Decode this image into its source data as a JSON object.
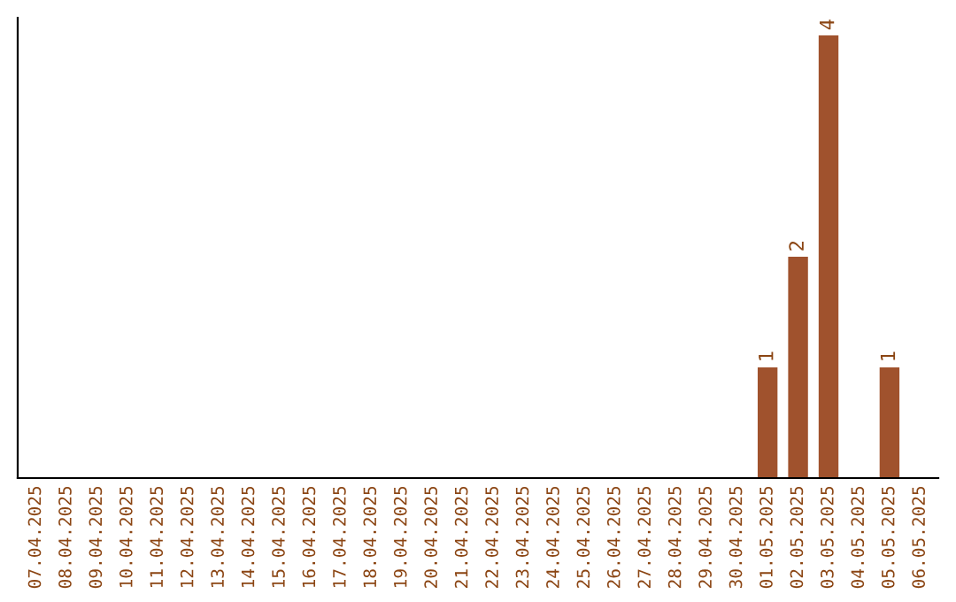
{
  "chart_data": {
    "type": "bar",
    "categories": [
      "07.04.2025",
      "08.04.2025",
      "09.04.2025",
      "10.04.2025",
      "11.04.2025",
      "12.04.2025",
      "13.04.2025",
      "14.04.2025",
      "15.04.2025",
      "16.04.2025",
      "17.04.2025",
      "18.04.2025",
      "19.04.2025",
      "20.04.2025",
      "21.04.2025",
      "22.04.2025",
      "23.04.2025",
      "24.04.2025",
      "25.04.2025",
      "26.04.2025",
      "27.04.2025",
      "28.04.2025",
      "29.04.2025",
      "30.04.2025",
      "01.05.2025",
      "02.05.2025",
      "03.05.2025",
      "04.05.2025",
      "05.05.2025",
      "06.05.2025"
    ],
    "values": [
      null,
      null,
      null,
      null,
      null,
      null,
      null,
      null,
      null,
      null,
      null,
      null,
      null,
      null,
      null,
      null,
      null,
      null,
      null,
      null,
      null,
      null,
      null,
      null,
      1,
      2,
      4,
      null,
      1,
      null
    ],
    "value_labels": [
      null,
      null,
      null,
      null,
      null,
      null,
      null,
      null,
      null,
      null,
      null,
      null,
      null,
      null,
      null,
      null,
      null,
      null,
      null,
      null,
      null,
      null,
      null,
      null,
      "1",
      "2",
      "4",
      null,
      "1",
      null
    ],
    "color": "#a0522d",
    "tick_labels": "x",
    "grid": false,
    "legend": false
  }
}
